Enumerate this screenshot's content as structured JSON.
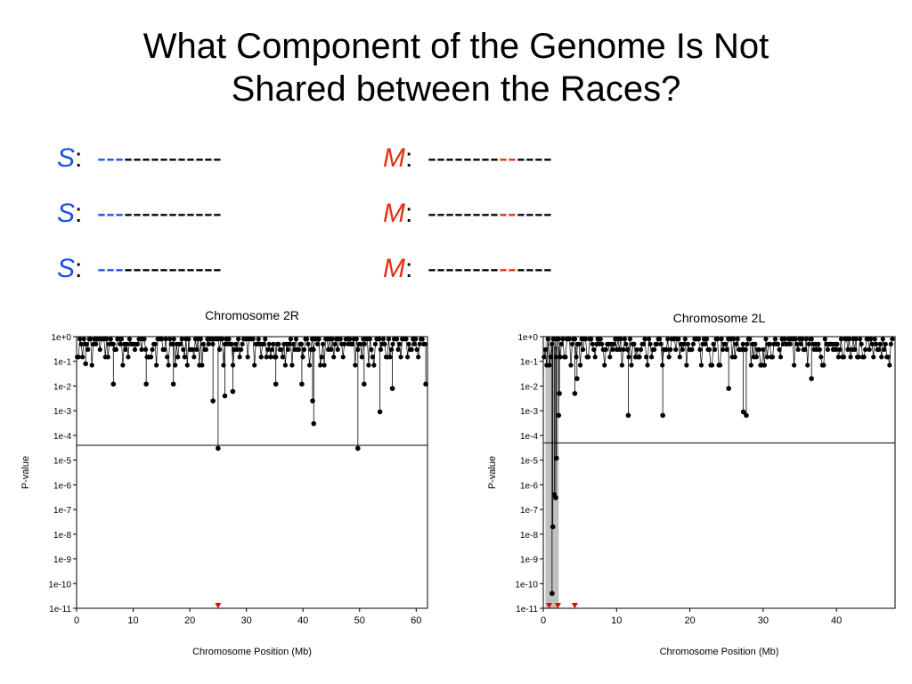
{
  "slide": {
    "title_line1": "What Component of the Genome Is Not",
    "title_line2": "Shared between the Races?"
  },
  "sequences": {
    "s_letter": "S",
    "m_letter": "M",
    "colon": ":",
    "s_highlight": "---",
    "s_rest": "-----------",
    "m_pre": "--------",
    "m_highlight": "--",
    "m_post": "----",
    "s_color": "#1f4fe0",
    "m_color": "#e03010",
    "rows": 3
  },
  "colors": {
    "marker": "#000000",
    "arrow": "#e00000",
    "shade": "#c0c0c0"
  },
  "chart_data": [
    {
      "type": "scatter",
      "title": "Chromosome 2R",
      "xlabel": "Chromosome Position (Mb)",
      "ylabel": "P-value",
      "y_scale": "log",
      "xlim": [
        0,
        62
      ],
      "ylim": [
        1e-11,
        1
      ],
      "x_ticks": [
        "0",
        "10",
        "20",
        "30",
        "40",
        "50",
        "60"
      ],
      "y_ticks": [
        "1e+0",
        "1e-1",
        "1e-2",
        "1e-3",
        "1e-4",
        "1e-5",
        "1e-6",
        "1e-7",
        "1e-8",
        "1e-9",
        "1e-10",
        "1e-11"
      ],
      "threshold": 4e-05,
      "dips": [
        {
          "x": 1.6,
          "y": 0.08
        },
        {
          "x": 6.5,
          "y": 0.012
        },
        {
          "x": 12.3,
          "y": 0.012
        },
        {
          "x": 17.1,
          "y": 0.012
        },
        {
          "x": 24.1,
          "y": 0.0025
        },
        {
          "x": 25.0,
          "y": 3e-05
        },
        {
          "x": 26.2,
          "y": 0.004
        },
        {
          "x": 27.6,
          "y": 0.006
        },
        {
          "x": 35.2,
          "y": 0.012
        },
        {
          "x": 39.8,
          "y": 0.012
        },
        {
          "x": 41.7,
          "y": 0.0025
        },
        {
          "x": 41.9,
          "y": 0.0003
        },
        {
          "x": 49.7,
          "y": 3e-05
        },
        {
          "x": 50.8,
          "y": 0.012
        },
        {
          "x": 53.6,
          "y": 0.0009
        },
        {
          "x": 55.8,
          "y": 0.008
        },
        {
          "x": 61.7,
          "y": 0.012
        }
      ],
      "arrows_x": [
        25.0
      ]
    },
    {
      "type": "scatter",
      "title": "Chromosome 2L",
      "xlabel": "Chromosome Position (Mb)",
      "ylabel": "P-value",
      "y_scale": "log",
      "xlim": [
        0,
        48
      ],
      "ylim": [
        1e-11,
        1
      ],
      "x_ticks": [
        "0",
        "10",
        "20",
        "30",
        "40"
      ],
      "y_ticks": [
        "1e+0",
        "1e-1",
        "1e-2",
        "1e-3",
        "1e-4",
        "1e-5",
        "1e-6",
        "1e-7",
        "1e-8",
        "1e-9",
        "1e-10",
        "1e-11"
      ],
      "threshold": 5e-05,
      "shaded_region": [
        0.3,
        2.1
      ],
      "dips": [
        {
          "x": 1.2,
          "y": 4e-11
        },
        {
          "x": 1.3,
          "y": 2e-08
        },
        {
          "x": 1.5,
          "y": 4e-07
        },
        {
          "x": 1.7,
          "y": 3e-07
        },
        {
          "x": 1.8,
          "y": 1.2e-05
        },
        {
          "x": 2.1,
          "y": 0.00065
        },
        {
          "x": 2.2,
          "y": 0.005
        },
        {
          "x": 4.3,
          "y": 0.005
        },
        {
          "x": 4.6,
          "y": 0.02
        },
        {
          "x": 11.6,
          "y": 0.00065
        },
        {
          "x": 16.3,
          "y": 0.00065
        },
        {
          "x": 25.3,
          "y": 0.008
        },
        {
          "x": 27.3,
          "y": 0.0009
        },
        {
          "x": 27.7,
          "y": 0.00065
        },
        {
          "x": 36.6,
          "y": 0.02
        }
      ],
      "arrows_x": [
        0.8,
        2.0,
        4.3
      ]
    }
  ]
}
